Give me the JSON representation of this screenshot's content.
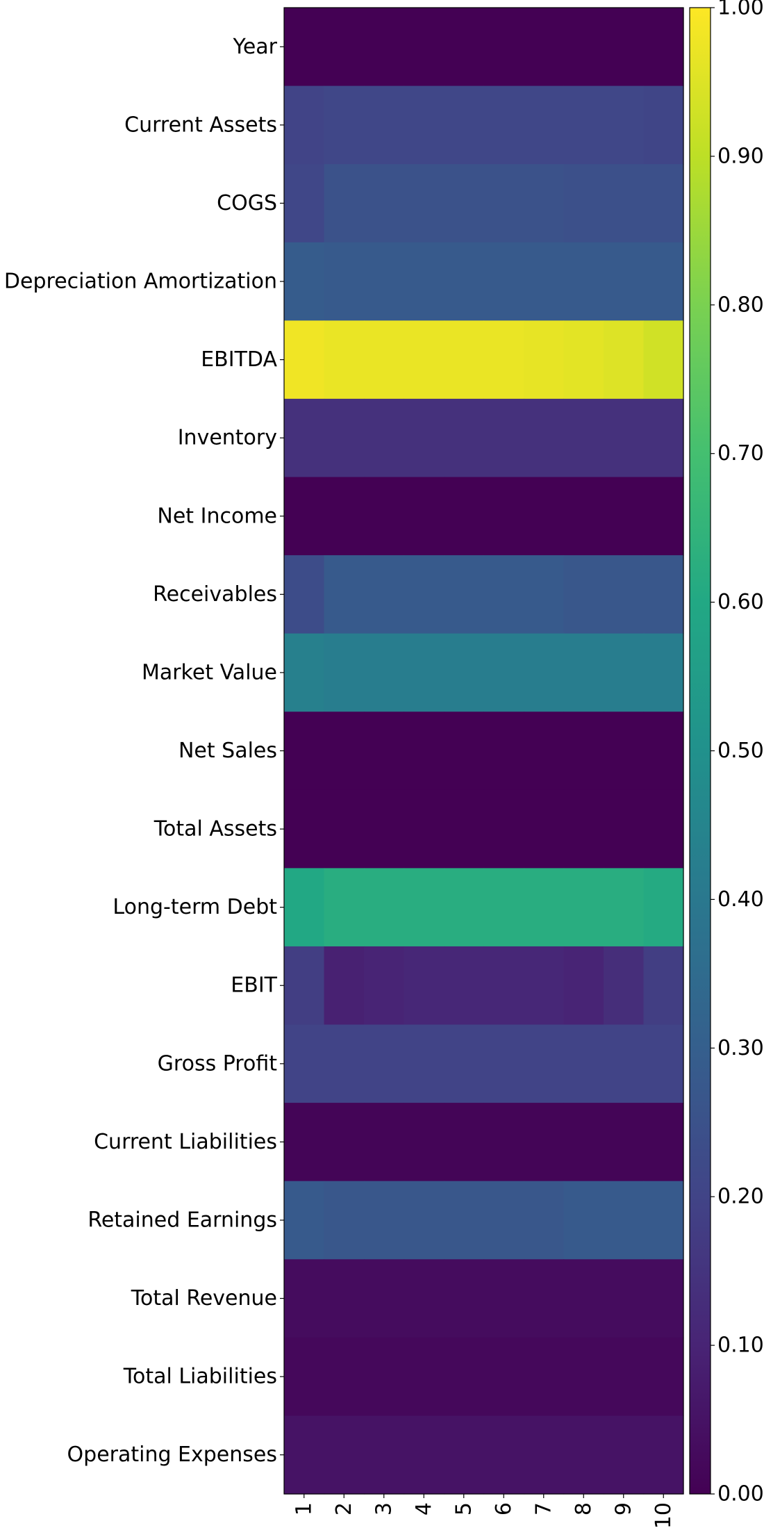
{
  "chart_data": {
    "type": "heatmap",
    "title": "",
    "xlabel": "",
    "ylabel": "",
    "x_categories": [
      "1",
      "2",
      "3",
      "4",
      "5",
      "6",
      "7",
      "8",
      "9",
      "10"
    ],
    "y_categories": [
      "Year",
      "Current Assets",
      "COGS",
      "Depreciation Amortization",
      "EBITDA",
      "Inventory",
      "Net Income",
      "Receivables",
      "Market Value",
      "Net Sales",
      "Total Assets",
      "Long-term Debt",
      "EBIT",
      "Gross Profit",
      "Current Liabilities",
      "Retained Earnings",
      "Total Revenue",
      "Total Liabilities",
      "Operating Expenses"
    ],
    "values": [
      [
        0.0,
        0.0,
        0.0,
        0.0,
        0.0,
        0.0,
        0.0,
        0.0,
        0.0,
        0.0
      ],
      [
        0.2,
        0.21,
        0.21,
        0.21,
        0.21,
        0.21,
        0.21,
        0.21,
        0.21,
        0.205
      ],
      [
        0.21,
        0.25,
        0.25,
        0.25,
        0.25,
        0.25,
        0.25,
        0.245,
        0.245,
        0.245
      ],
      [
        0.29,
        0.28,
        0.28,
        0.28,
        0.28,
        0.28,
        0.28,
        0.28,
        0.28,
        0.28
      ],
      [
        0.98,
        0.97,
        0.97,
        0.97,
        0.97,
        0.97,
        0.965,
        0.96,
        0.95,
        0.93
      ],
      [
        0.14,
        0.14,
        0.14,
        0.14,
        0.14,
        0.14,
        0.14,
        0.14,
        0.14,
        0.14
      ],
      [
        0.0,
        0.0,
        0.0,
        0.0,
        0.0,
        0.0,
        0.0,
        0.0,
        0.0,
        0.0
      ],
      [
        0.23,
        0.28,
        0.28,
        0.28,
        0.28,
        0.28,
        0.28,
        0.27,
        0.27,
        0.27
      ],
      [
        0.43,
        0.42,
        0.42,
        0.42,
        0.42,
        0.42,
        0.42,
        0.42,
        0.42,
        0.42
      ],
      [
        0.0,
        0.0,
        0.0,
        0.0,
        0.0,
        0.0,
        0.0,
        0.0,
        0.0,
        0.0
      ],
      [
        0.0,
        0.0,
        0.0,
        0.0,
        0.0,
        0.0,
        0.0,
        0.0,
        0.0,
        0.0
      ],
      [
        0.6,
        0.62,
        0.62,
        0.62,
        0.62,
        0.62,
        0.62,
        0.62,
        0.62,
        0.61
      ],
      [
        0.18,
        0.09,
        0.1,
        0.11,
        0.11,
        0.11,
        0.11,
        0.1,
        0.13,
        0.18
      ],
      [
        0.2,
        0.2,
        0.2,
        0.2,
        0.2,
        0.2,
        0.2,
        0.2,
        0.2,
        0.2
      ],
      [
        0.01,
        0.01,
        0.01,
        0.01,
        0.01,
        0.01,
        0.01,
        0.01,
        0.01,
        0.01
      ],
      [
        0.28,
        0.27,
        0.27,
        0.27,
        0.27,
        0.27,
        0.27,
        0.28,
        0.28,
        0.28
      ],
      [
        0.03,
        0.03,
        0.03,
        0.03,
        0.03,
        0.03,
        0.03,
        0.03,
        0.03,
        0.03
      ],
      [
        0.02,
        0.02,
        0.02,
        0.02,
        0.02,
        0.02,
        0.02,
        0.02,
        0.02,
        0.02
      ],
      [
        0.05,
        0.05,
        0.05,
        0.05,
        0.05,
        0.05,
        0.05,
        0.05,
        0.05,
        0.05
      ]
    ],
    "colormap": "viridis",
    "vmin": 0.0,
    "vmax": 1.0,
    "colorbar": {
      "tick_values": [
        0.0,
        0.1,
        0.2,
        0.3,
        0.4,
        0.5,
        0.6,
        0.7,
        0.8,
        0.9,
        1.0
      ],
      "tick_labels": [
        "0.00",
        "0.10",
        "0.20",
        "0.30",
        "0.40",
        "0.50",
        "0.60",
        "0.70",
        "0.80",
        "0.90",
        "1.00"
      ]
    },
    "grid": false,
    "legend": "colorbar-right"
  }
}
